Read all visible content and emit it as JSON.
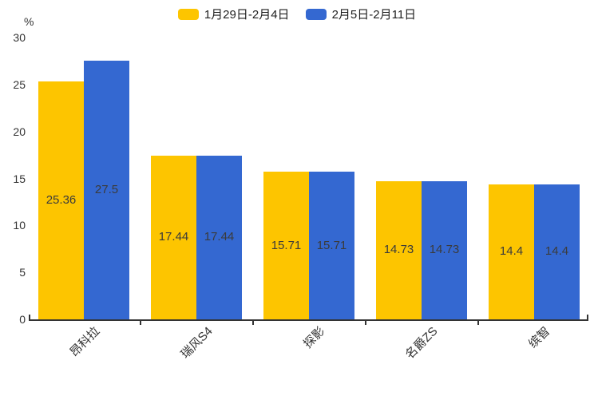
{
  "chart_data": {
    "type": "bar",
    "title": "",
    "unit_label": "%",
    "categories": [
      "昂科拉",
      "瑞风S4",
      "探影",
      "名爵ZS",
      "缤智"
    ],
    "series": [
      {
        "name": "1月29日-2月4日",
        "color": "#FDC500",
        "values": [
          25.36,
          17.44,
          15.71,
          14.73,
          14.4
        ]
      },
      {
        "name": "2月5日-2月11日",
        "color": "#3468D1",
        "values": [
          27.5,
          17.44,
          15.71,
          14.73,
          14.4
        ]
      }
    ],
    "ylim": [
      0,
      30
    ],
    "yticks": [
      0,
      5,
      10,
      15,
      20,
      25,
      30
    ],
    "grid": false,
    "legend_position": "top-center",
    "value_label_position": "inside-center",
    "axis_color": "#333333",
    "background": "#ffffff"
  }
}
